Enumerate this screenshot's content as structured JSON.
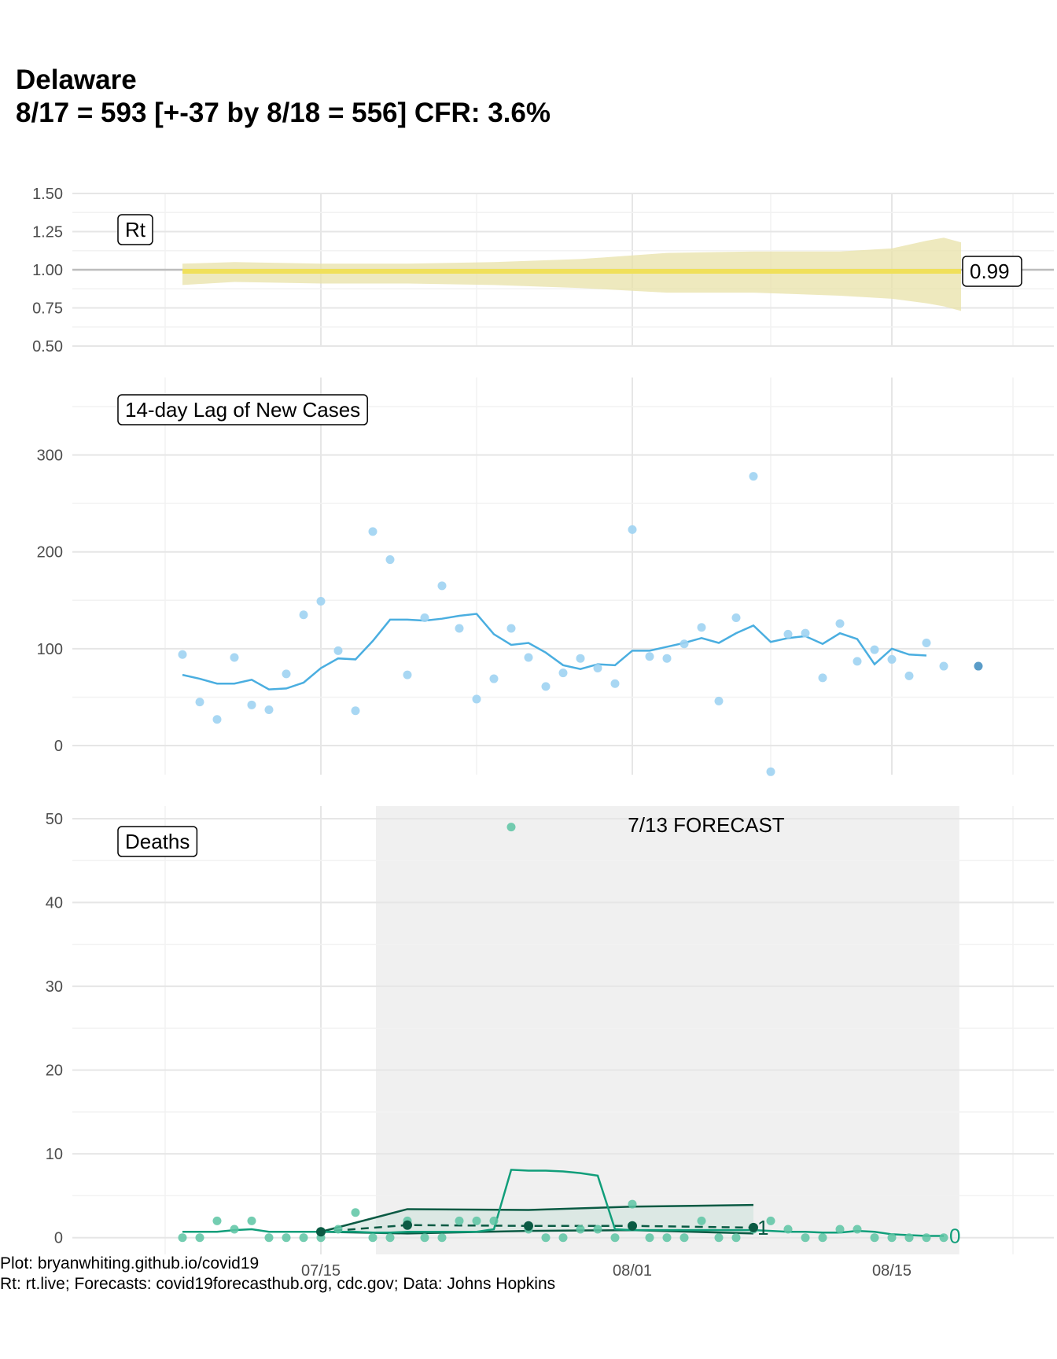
{
  "title_line1": "Delaware",
  "title_line2": "8/17 = 593 [+-37 by 8/18 = 556] CFR: 3.6%",
  "caption_line1": "Plot: bryanwhiting.github.io/covid19",
  "caption_line2": "Rt: rt.live; Forecasts: covid19forecasthub.org, cdc.gov; Data: Johns Hopkins",
  "colors": {
    "rt": "#f0e05a",
    "rt_band": "#e8e2a8",
    "cases": "#4aaee0",
    "cases_point": "#9fd3f2",
    "deaths": "#119e7a",
    "deaths_point": "#5cc4a3",
    "forecast": "#0a5a43",
    "forecast_bg": "#f0f0f0"
  },
  "chart_data": [
    {
      "type": "line",
      "panel_label": "Rt",
      "x_tick_labels": [
        "07/15",
        "08/01",
        "08/15"
      ],
      "ylim": [
        0.5,
        1.5
      ],
      "y_ticks": [
        0.5,
        0.75,
        1.0,
        1.25,
        1.5
      ],
      "y_tick_labels": [
        "0.50",
        "0.75",
        "1.00",
        "1.25",
        "1.50"
      ],
      "reference_line": 1.0,
      "x_day_range": [
        -8,
        38
      ],
      "rt_value_days": [
        -8,
        37
      ],
      "rt_value": [
        0.99,
        0.99
      ],
      "band_days": [
        -8,
        -5,
        0,
        5,
        10,
        15,
        20,
        25,
        30,
        33,
        35,
        36,
        37
      ],
      "band_upper": [
        1.04,
        1.05,
        1.04,
        1.04,
        1.05,
        1.07,
        1.11,
        1.12,
        1.12,
        1.14,
        1.19,
        1.21,
        1.18
      ],
      "band_lower": [
        0.9,
        0.92,
        0.91,
        0.91,
        0.9,
        0.88,
        0.85,
        0.85,
        0.83,
        0.81,
        0.78,
        0.76,
        0.73
      ],
      "end_label": "0.99"
    },
    {
      "type": "scatter",
      "panel_label": "14-day Lag of New Cases",
      "ylim": [
        -30,
        380
      ],
      "y_ticks": [
        0,
        100,
        200,
        300
      ],
      "y_tick_labels": [
        "0",
        "100",
        "200",
        "300"
      ],
      "days": [
        -8,
        -7,
        -6,
        -5,
        -4,
        -3,
        -2,
        -1,
        0,
        1,
        2,
        3,
        4,
        5,
        6,
        7,
        8,
        9,
        10,
        11,
        12,
        13,
        14,
        15,
        16,
        17,
        18,
        19,
        20,
        21,
        22,
        23,
        24,
        25,
        26,
        27,
        28,
        29,
        30,
        31,
        32,
        33,
        34,
        35,
        36,
        37,
        38
      ],
      "points": [
        94,
        45,
        27,
        91,
        42,
        37,
        74,
        135,
        149,
        98,
        36,
        221,
        192,
        73,
        132,
        165,
        121,
        48,
        69,
        121,
        91,
        61,
        75,
        90,
        80,
        64,
        223,
        92,
        90,
        105,
        122,
        46,
        132,
        278,
        -27,
        115,
        116,
        70,
        126,
        87,
        99,
        89,
        72,
        106,
        82,
        null,
        null
      ],
      "rolling_avg_days": [
        -8,
        -7,
        -6,
        -5,
        -4,
        -3,
        -2,
        -1,
        0,
        1,
        2,
        3,
        4,
        5,
        6,
        7,
        8,
        9,
        10,
        11,
        12,
        13,
        14,
        15,
        16,
        17,
        18,
        19,
        20,
        21,
        22,
        23,
        24,
        25,
        26,
        27,
        28,
        29,
        30,
        31,
        32,
        33,
        34,
        35,
        36
      ],
      "rolling_avg": [
        73,
        69,
        64,
        64,
        68,
        58,
        59,
        65,
        80,
        90,
        89,
        108,
        130,
        130,
        129,
        131,
        134,
        136,
        115,
        104,
        106,
        96,
        83,
        79,
        84,
        83,
        98,
        98,
        102,
        106,
        111,
        106,
        116,
        124,
        107,
        111,
        113,
        105,
        116,
        110,
        84,
        100,
        94,
        93,
        null
      ]
    },
    {
      "type": "scatter",
      "panel_label": "Deaths",
      "ylim": [
        -2,
        51.5
      ],
      "y_ticks": [
        0,
        10,
        20,
        30,
        40,
        50
      ],
      "y_tick_labels": [
        "0",
        "10",
        "20",
        "30",
        "40",
        "50"
      ],
      "forecast_label": "7/13 FORECAST",
      "forecast_shade_days": [
        3,
        34
      ],
      "days": [
        -8,
        -7,
        -6,
        -5,
        -4,
        -3,
        -2,
        -1,
        0,
        1,
        2,
        3,
        4,
        5,
        6,
        7,
        8,
        9,
        10,
        11,
        12,
        13,
        14,
        15,
        16,
        17,
        18,
        19,
        20,
        21,
        22,
        23,
        24,
        25,
        26,
        27,
        28,
        29,
        30,
        31,
        32,
        33,
        34,
        35,
        36
      ],
      "points": [
        0,
        0,
        2,
        1,
        2,
        0,
        0,
        0,
        0,
        1,
        3,
        0,
        0,
        2,
        0,
        0,
        2,
        2,
        2,
        49,
        1,
        0,
        0,
        1,
        1,
        0,
        4,
        0,
        0,
        0,
        2,
        0,
        0,
        1,
        2,
        1,
        0,
        0,
        1,
        1,
        0,
        0,
        0,
        0,
        0
      ],
      "rolling_avg_days": [
        -8,
        -7,
        -6,
        -5,
        -4,
        -3,
        -2,
        -1,
        0,
        1,
        2,
        3,
        4,
        5,
        6,
        7,
        8,
        9,
        10,
        11,
        12,
        13,
        14,
        15,
        16,
        17,
        18,
        19,
        20,
        21,
        22,
        23,
        24,
        25,
        26,
        27,
        28,
        29,
        30,
        31,
        32,
        33,
        34,
        35,
        36
      ],
      "rolling_avg": [
        0.7,
        0.7,
        0.7,
        0.9,
        1,
        0.7,
        0.7,
        0.7,
        0.7,
        0.7,
        0.7,
        0.6,
        0.6,
        0.7,
        0.7,
        0.7,
        0.7,
        0.7,
        1,
        8.1,
        8,
        8,
        7.9,
        7.7,
        7.4,
        1,
        0.9,
        0.9,
        0.9,
        0.9,
        0.9,
        0.9,
        0.9,
        0.9,
        0.8,
        0.7,
        0.7,
        0.6,
        0.6,
        0.8,
        0.7,
        0.4,
        0.3,
        0.2,
        0.2
      ],
      "forecast_days": [
        0,
        5,
        12,
        18,
        25
      ],
      "forecast_median": [
        0.7,
        1.5,
        1.4,
        1.4,
        1.2
      ],
      "forecast_upper": [
        0.7,
        3.4,
        3.3,
        3.7,
        3.9
      ],
      "forecast_lower": [
        0.7,
        0.5,
        0.8,
        0.9,
        0.5
      ],
      "forecast_end_label": "1",
      "actual_end_label": "0"
    }
  ]
}
